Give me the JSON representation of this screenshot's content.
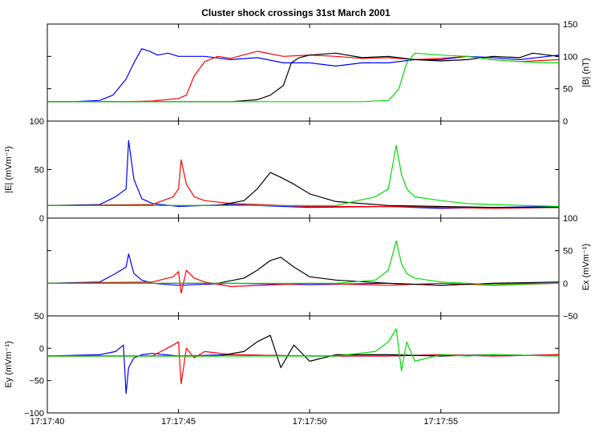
{
  "chart_data": {
    "type": "line",
    "title": "Cluster shock crossings 31st March 2001",
    "colors": {
      "red": "#ff0000",
      "green": "#00dd00",
      "blue": "#0000ff",
      "black": "#000000"
    },
    "x_tick_labels": [
      "17:17:40",
      "17:17:45",
      "17:17:50",
      "17:17:55"
    ],
    "x_ticks_seconds": [
      0,
      5,
      10,
      15
    ],
    "xlim_seconds": [
      0,
      19.5
    ],
    "panels": [
      {
        "id": "B",
        "ylabel": "|B| (nT)",
        "ylabel_side": "right",
        "ylim": [
          0,
          150
        ],
        "yticks": [
          0,
          50,
          100,
          150
        ],
        "ytick_labels": [
          "0",
          "50",
          "100",
          "150"
        ],
        "ytick_labels_shown_right": [
          "0",
          "50",
          "100",
          "150"
        ],
        "series": [
          {
            "color": "blue",
            "x": [
              0,
              1,
              2,
              2.5,
              3,
              3.3,
              3.6,
              3.9,
              4.2,
              4.6,
              5.0,
              6,
              7,
              8,
              9,
              10,
              11,
              12,
              13,
              14,
              15,
              16,
              17,
              18,
              19.5
            ],
            "y": [
              30,
              30,
              32,
              40,
              65,
              90,
              112,
              108,
              102,
              105,
              100,
              100,
              95,
              98,
              90,
              90,
              85,
              90,
              90,
              95,
              95,
              100,
              98,
              95,
              102
            ]
          },
          {
            "color": "red",
            "x": [
              0,
              3,
              4,
              5,
              5.3,
              5.6,
              6,
              6.5,
              7,
              8,
              9,
              10,
              11,
              12,
              13,
              14,
              15,
              16,
              17,
              18,
              19.5
            ],
            "y": [
              30,
              30,
              31,
              35,
              40,
              70,
              92,
              100,
              97,
              108,
              100,
              102,
              100,
              97,
              98,
              95,
              97,
              100,
              95,
              92,
              95
            ]
          },
          {
            "color": "black",
            "x": [
              0,
              6,
              7,
              8,
              8.5,
              9,
              9.3,
              9.6,
              10,
              11,
              12,
              13,
              14,
              15,
              16,
              17,
              18,
              18.5,
              19.5
            ],
            "y": [
              30,
              30,
              30,
              33,
              40,
              55,
              90,
              98,
              102,
              105,
              98,
              100,
              95,
              93,
              95,
              100,
              98,
              105,
              100
            ]
          },
          {
            "color": "green",
            "x": [
              0,
              10,
              12,
              13,
              13.2,
              13.4,
              13.7,
              14,
              15,
              16,
              17,
              18,
              19,
              19.5
            ],
            "y": [
              30,
              30,
              30,
              32,
              40,
              50,
              90,
              105,
              102,
              100,
              95,
              92,
              90,
              90
            ]
          }
        ]
      },
      {
        "id": "E",
        "ylabel": "|E| (mVm⁻¹)",
        "ylabel_side": "left",
        "ylim": [
          0,
          100
        ],
        "yticks": [
          0,
          50,
          100
        ],
        "ytick_labels": [
          "0",
          "50",
          "100"
        ],
        "series": [
          {
            "color": "blue",
            "x": [
              0,
              2.0,
              2.6,
              3.0,
              3.1,
              3.3,
              3.6,
              4.0,
              5.0,
              7.0,
              10.0,
              13.0,
              15.0,
              17.0,
              19.5
            ],
            "y": [
              13,
              14,
              22,
              30,
              80,
              40,
              20,
              15,
              12,
              14,
              11,
              12,
              10,
              11,
              12
            ]
          },
          {
            "color": "red",
            "x": [
              0,
              4.0,
              4.8,
              5.0,
              5.1,
              5.3,
              5.6,
              6.0,
              7.0,
              10.0,
              13.0,
              15.0,
              17.0,
              19.5
            ],
            "y": [
              13,
              14,
              22,
              30,
              60,
              35,
              22,
              18,
              15,
              12,
              12,
              11,
              10,
              11
            ]
          },
          {
            "color": "black",
            "x": [
              0,
              6.5,
              7.5,
              8.0,
              8.5,
              8.9,
              9.4,
              10.0,
              11.0,
              13.0,
              15.0,
              17.0,
              19.5
            ],
            "y": [
              13,
              13,
              18,
              30,
              47,
              42,
              35,
              25,
              17,
              13,
              12,
              11,
              11
            ]
          },
          {
            "color": "green",
            "x": [
              0,
              11.0,
              12.5,
              13.0,
              13.3,
              13.5,
              13.7,
              14.0,
              15.0,
              16.0,
              17.0,
              19.5
            ],
            "y": [
              13,
              13,
              22,
              30,
              75,
              45,
              30,
              22,
              18,
              15,
              14,
              12
            ]
          }
        ]
      },
      {
        "id": "Ex",
        "ylabel": "Ex (mVm⁻¹)",
        "ylabel_side": "right",
        "ylim": [
          -50,
          100
        ],
        "yticks": [
          -50,
          0,
          50,
          100
        ],
        "ytick_labels": [
          "−50",
          "0",
          "50",
          "100"
        ],
        "series": [
          {
            "color": "blue",
            "x": [
              0,
              2.0,
              2.6,
              3.0,
              3.1,
              3.3,
              3.6,
              4.0,
              5.0,
              7.0,
              10.0,
              13.0,
              15.0,
              17.0,
              19.5
            ],
            "y": [
              0,
              2,
              15,
              25,
              45,
              15,
              5,
              0,
              -3,
              0,
              -2,
              0,
              -3,
              0,
              0
            ]
          },
          {
            "color": "red",
            "x": [
              0,
              4.0,
              4.8,
              5.0,
              5.1,
              5.3,
              5.6,
              6.0,
              7.0,
              10.0,
              13.0,
              15.0,
              17.0,
              19.5
            ],
            "y": [
              0,
              2,
              10,
              18,
              -15,
              20,
              8,
              2,
              -5,
              0,
              -3,
              0,
              -3,
              0
            ]
          },
          {
            "color": "black",
            "x": [
              0,
              6.5,
              7.5,
              8.0,
              8.5,
              8.9,
              9.4,
              10.0,
              11.0,
              13.0,
              15.0,
              17.0,
              19.5
            ],
            "y": [
              0,
              0,
              8,
              20,
              35,
              40,
              25,
              10,
              5,
              0,
              -3,
              0,
              2
            ]
          },
          {
            "color": "green",
            "x": [
              0,
              11.0,
              12.5,
              13.0,
              13.3,
              13.5,
              13.7,
              14.0,
              15.0,
              16.0,
              17.0,
              19.5
            ],
            "y": [
              0,
              0,
              5,
              20,
              65,
              30,
              15,
              8,
              2,
              0,
              -2,
              0
            ]
          }
        ]
      },
      {
        "id": "Ey",
        "ylabel": "Ey (mVm⁻¹)",
        "ylabel_side": "left",
        "ylim": [
          -100,
          50
        ],
        "yticks": [
          -100,
          -50,
          0,
          50
        ],
        "ytick_labels": [
          "−100",
          "−50",
          "0",
          "50"
        ],
        "series": [
          {
            "color": "blue",
            "x": [
              0,
              2.0,
              2.6,
              2.9,
              3.0,
              3.1,
              3.3,
              3.6,
              4.0,
              5.0,
              7.0,
              10.0,
              13.0,
              15.0,
              17.0,
              19.5
            ],
            "y": [
              -12,
              -10,
              -5,
              5,
              -70,
              -30,
              -15,
              -10,
              -8,
              -12,
              -10,
              -12,
              -12,
              -10,
              -12,
              -10
            ]
          },
          {
            "color": "red",
            "x": [
              0,
              4.0,
              4.8,
              5.0,
              5.1,
              5.3,
              5.6,
              6.0,
              7.0,
              10.0,
              13.0,
              15.0,
              17.0,
              19.5
            ],
            "y": [
              -12,
              -12,
              5,
              10,
              -55,
              0,
              -15,
              -5,
              -10,
              -12,
              -12,
              -10,
              -12,
              -10
            ]
          },
          {
            "color": "black",
            "x": [
              0,
              6.5,
              7.5,
              8.0,
              8.5,
              8.9,
              9.4,
              10.0,
              11.0,
              13.0,
              15.0,
              17.0,
              19.5
            ],
            "y": [
              -12,
              -12,
              -5,
              10,
              20,
              -30,
              5,
              -20,
              -10,
              -10,
              -12,
              -10,
              -12
            ]
          },
          {
            "color": "green",
            "x": [
              0,
              11.0,
              12.5,
              13.0,
              13.3,
              13.5,
              13.7,
              14.0,
              15.0,
              16.0,
              17.0,
              19.5
            ],
            "y": [
              -12,
              -12,
              -5,
              10,
              30,
              -35,
              10,
              -20,
              -10,
              -12,
              -10,
              -12
            ]
          }
        ]
      }
    ]
  }
}
